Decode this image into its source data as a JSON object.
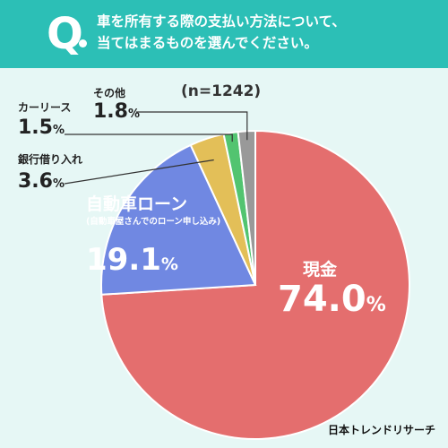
{
  "header": {
    "q_letter": "Q",
    "question_line1": "車を所有する際の支払い方法について、",
    "question_line2": "当てはまるものを選んでください。"
  },
  "colors": {
    "header_bg": "#2cbfb6",
    "background": "#e6f7f5",
    "cash": "#e46e6e",
    "loan": "#7088e2",
    "bank_loan": "#e3bf58",
    "car_lease": "#52c470",
    "other": "#999999"
  },
  "chart_data": {
    "type": "pie",
    "n_label": "(n=1242)",
    "unit": "%",
    "slices": [
      {
        "label": "現金",
        "value": 74.0,
        "value_text": "74.0",
        "color": "#e46e6e"
      },
      {
        "label": "自動車ローン",
        "sublabel": "(自動車屋さんでのローン申し込み)",
        "value": 19.1,
        "value_text": "19.1",
        "color": "#7088e2"
      },
      {
        "label": "銀行借り入れ",
        "value": 3.6,
        "value_text": "3.6",
        "color": "#e3bf58"
      },
      {
        "label": "カーリース",
        "value": 1.5,
        "value_text": "1.5",
        "color": "#52c470"
      },
      {
        "label": "その他",
        "value": 1.8,
        "value_text": "1.8",
        "color": "#999999"
      }
    ]
  },
  "brand": "日本トレンドリサーチ"
}
